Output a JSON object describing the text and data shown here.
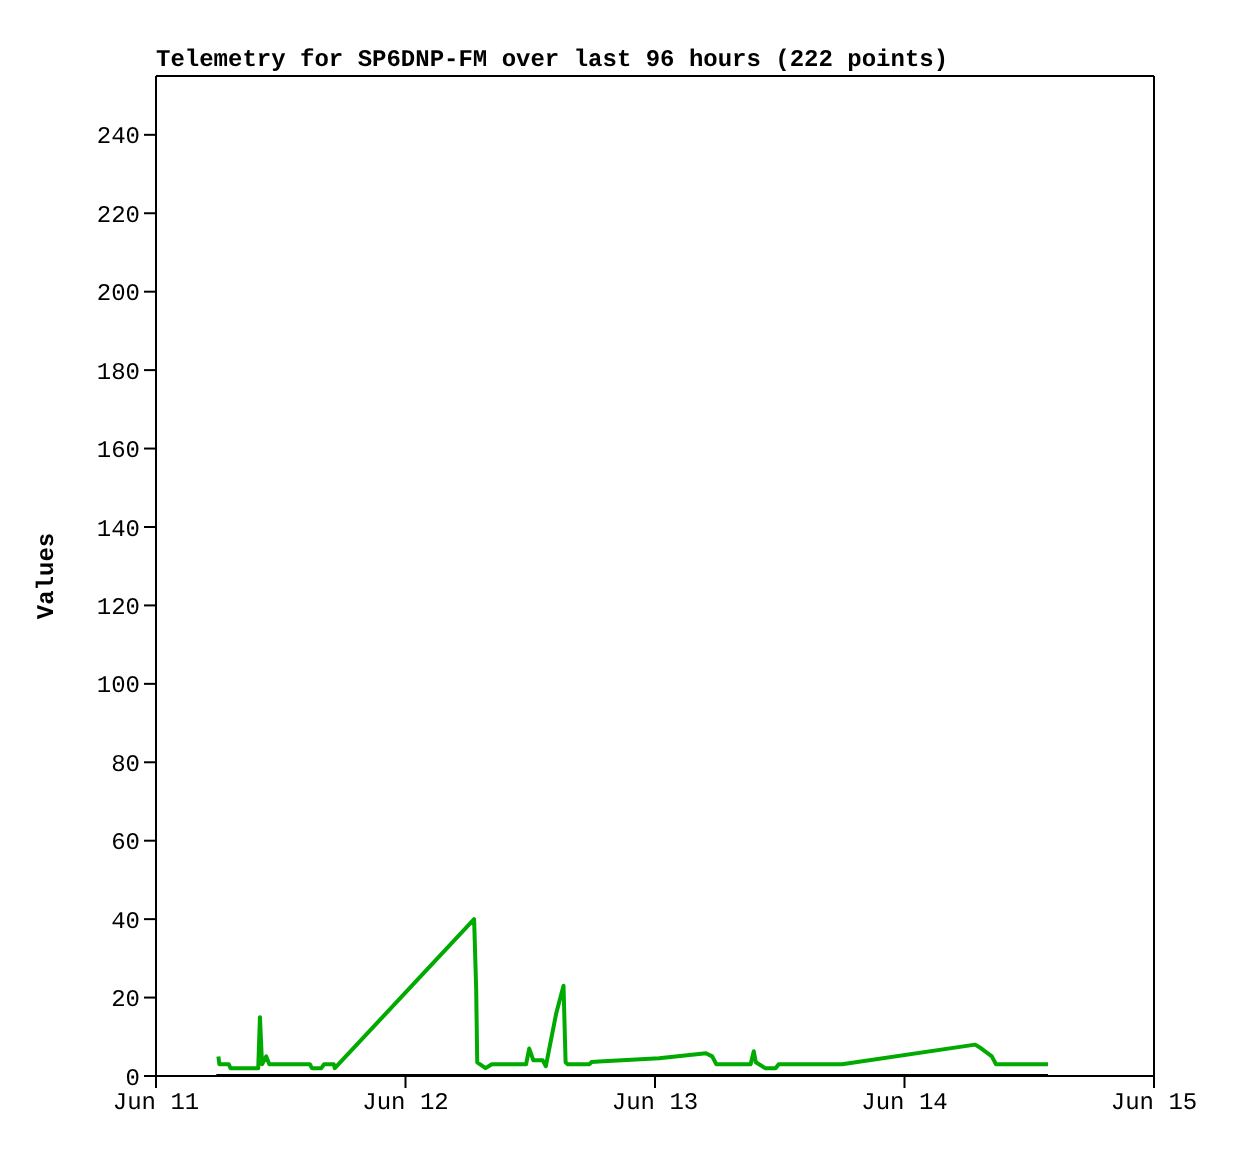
{
  "chart_data": {
    "type": "line",
    "title": "Telemetry for SP6DNP-FM over last 96 hours (222 points)",
    "ylabel": "Values",
    "xlim": [
      "--06-11",
      "--06-15"
    ],
    "xticks": [
      {
        "value": "--06-11",
        "label": "Jun 11"
      },
      {
        "value": "--06-12",
        "label": "Jun 12"
      },
      {
        "value": "--06-13",
        "label": "Jun 13"
      },
      {
        "value": "--06-14",
        "label": "Jun 14"
      },
      {
        "value": "--06-15",
        "label": "Jun 15"
      }
    ],
    "ylim": [
      0,
      255
    ],
    "yticks": [
      0,
      20,
      40,
      60,
      80,
      100,
      120,
      140,
      160,
      180,
      200,
      220,
      240
    ],
    "marker": "none",
    "line_style": "solid",
    "series": [
      {
        "color": "#000000",
        "x": [
          "--06-11T05:48",
          "--06-14T13:48"
        ],
        "values": [
          0,
          0
        ]
      },
      {
        "color": "#00aa00",
        "x": [
          "--06-11T06:00",
          "--06-11T06:06",
          "--06-11T07:00",
          "--06-11T07:10",
          "--06-11T09:50",
          "--06-11T10:00",
          "--06-11T10:12",
          "--06-11T10:36",
          "--06-11T10:54",
          "--06-11T14:48",
          "--06-11T15:00",
          "--06-11T15:54",
          "--06-11T16:10",
          "--06-11T17:06",
          "--06-11T17:12",
          "--06-12T06:36",
          "--06-12T06:48",
          "--06-12T06:54",
          "--06-12T07:42",
          "--06-12T08:18",
          "--06-12T11:36",
          "--06-12T11:54",
          "--06-12T12:18",
          "--06-12T13:12",
          "--06-12T13:30",
          "--06-12T14:30",
          "--06-12T15:12",
          "--06-12T15:24",
          "--06-12T15:36",
          "--06-12T17:42",
          "--06-12T17:54",
          "--06-12T18:36",
          "--06-13T00:24",
          "--06-13T04:54",
          "--06-13T05:30",
          "--06-13T05:54",
          "--06-13T09:12",
          "--06-13T09:30",
          "--06-13T09:42",
          "--06-13T10:36",
          "--06-13T11:36",
          "--06-13T11:54",
          "--06-13T18:00",
          "--06-14T06:48",
          "--06-14T07:24",
          "--06-14T08:24",
          "--06-14T08:48",
          "--06-14T13:48"
        ],
        "values": [
          5,
          3,
          3,
          2,
          2,
          15,
          3,
          5,
          3,
          3,
          2,
          2,
          3,
          3,
          2,
          40,
          22,
          3.5,
          2,
          3,
          3,
          7,
          4,
          4,
          2.5,
          16,
          23,
          3.5,
          3,
          3,
          3.6,
          3.7,
          4.5,
          5.8,
          5,
          3,
          3,
          6.3,
          3.5,
          2,
          2,
          3,
          3,
          8,
          7,
          5,
          3,
          3
        ]
      }
    ]
  }
}
